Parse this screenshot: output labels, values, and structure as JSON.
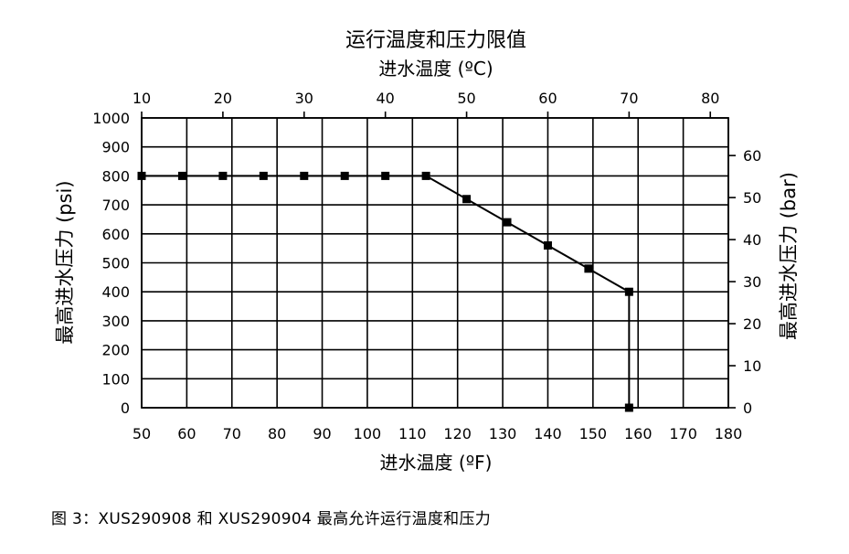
{
  "chart_data": {
    "type": "line",
    "title": "运行温度和压力限值",
    "top_axis_label": "进水温度 (ºC)",
    "xlabel": "进水温度 (ºF)",
    "ylabel": "最高进水压力 (psi)",
    "ylabel_right": "最高进水压力 (bar)",
    "xlim": [
      50,
      180
    ],
    "ylim": [
      0,
      1000
    ],
    "x_ticks": [
      50,
      60,
      70,
      80,
      90,
      100,
      110,
      120,
      130,
      140,
      150,
      160,
      170,
      180
    ],
    "y_ticks": [
      0,
      100,
      200,
      300,
      400,
      500,
      600,
      700,
      800,
      900,
      1000
    ],
    "top_ticks": [
      10,
      20,
      30,
      40,
      50,
      60,
      70,
      80
    ],
    "right_ticks": [
      0,
      10,
      20,
      30,
      40,
      50,
      60
    ],
    "grid": true,
    "series": [
      {
        "x": [
          50,
          59,
          68,
          77,
          86,
          95,
          104,
          113,
          122,
          131,
          140,
          149,
          158,
          158
        ],
        "y": [
          800,
          800,
          800,
          800,
          800,
          800,
          800,
          800,
          720,
          640,
          560,
          480,
          400,
          0
        ]
      }
    ]
  },
  "caption": "图 3：XUS290908 和 XUS290904 最高允许运行温度和压力"
}
